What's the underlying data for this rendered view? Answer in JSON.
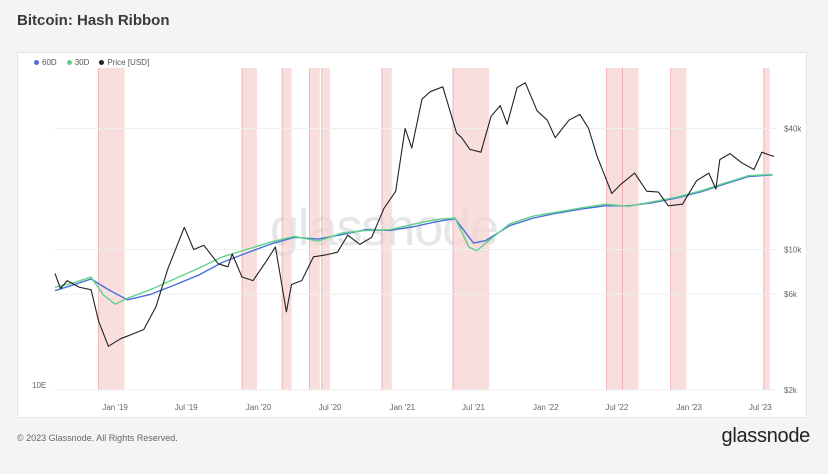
{
  "page": {
    "title": "Bitcoin: Hash Ribbon",
    "footer": "© 2023 Glassnode. All Rights Reserved.",
    "brand": "glassnode",
    "watermark": "glassnode"
  },
  "colors": {
    "price": "#222222",
    "sma60": "#4a6fdc",
    "sma30": "#5fd38a",
    "capitulation": "#f7d3d3",
    "capitulation_edge": "#e88686"
  },
  "chart_data": {
    "type": "line",
    "title": "Bitcoin: Hash Ribbon",
    "legend_position": "top-left",
    "grid": true,
    "x_ticks": [
      "Jan '19",
      "Jul '19",
      "Jan '20",
      "Jul '20",
      "Jan '21",
      "Jul '21",
      "Jan '22",
      "Jul '22",
      "Jan '23",
      "Jul '23"
    ],
    "x_tick_dates": [
      "2019-01-01",
      "2019-07-01",
      "2020-01-01",
      "2020-07-01",
      "2021-01-01",
      "2021-07-01",
      "2022-01-01",
      "2022-07-01",
      "2023-01-01",
      "2023-07-01"
    ],
    "xlim": [
      "2018-08-01",
      "2023-08-10"
    ],
    "y_right": {
      "scale": "log",
      "ticks": [
        "$2k",
        "$6k",
        "$10k",
        "$40k"
      ],
      "tick_values": [
        2000,
        6000,
        10000,
        40000
      ],
      "ylim": [
        2000,
        80000
      ]
    },
    "y_left": {
      "scale": "log",
      "ticks": [
        "10E"
      ]
    },
    "series": [
      {
        "name": "60D",
        "unit": "EH/s",
        "x": [
          "2018-08-01",
          "2018-09-15",
          "2018-11-01",
          "2018-12-15",
          "2019-02-01",
          "2019-04-01",
          "2019-06-01",
          "2019-08-01",
          "2019-10-01",
          "2019-12-01",
          "2020-02-01",
          "2020-04-01",
          "2020-06-01",
          "2020-08-01",
          "2020-10-01",
          "2020-12-01",
          "2021-02-01",
          "2021-04-01",
          "2021-05-15",
          "2021-07-01",
          "2021-08-01",
          "2021-10-01",
          "2021-12-01",
          "2022-02-01",
          "2022-04-01",
          "2022-06-01",
          "2022-08-01",
          "2022-10-01",
          "2022-12-01",
          "2023-02-01",
          "2023-04-01",
          "2023-06-01",
          "2023-08-01"
        ],
        "values": [
          47,
          52,
          58,
          48,
          40,
          44,
          52,
          62,
          78,
          92,
          108,
          122,
          118,
          128,
          140,
          138,
          148,
          162,
          170,
          110,
          115,
          150,
          172,
          188,
          202,
          214,
          214,
          226,
          246,
          275,
          315,
          360,
          372
        ]
      },
      {
        "name": "30D",
        "unit": "EH/s",
        "x": [
          "2018-08-01",
          "2018-09-15",
          "2018-11-01",
          "2018-12-01",
          "2019-01-01",
          "2019-02-01",
          "2019-04-01",
          "2019-06-01",
          "2019-08-01",
          "2019-10-01",
          "2019-12-01",
          "2020-02-01",
          "2020-04-01",
          "2020-06-01",
          "2020-08-01",
          "2020-10-01",
          "2020-12-01",
          "2021-02-01",
          "2021-04-01",
          "2021-05-15",
          "2021-06-20",
          "2021-07-10",
          "2021-08-01",
          "2021-10-01",
          "2021-12-01",
          "2022-02-01",
          "2022-04-01",
          "2022-06-01",
          "2022-08-01",
          "2022-10-01",
          "2022-12-01",
          "2023-02-01",
          "2023-04-01",
          "2023-06-01",
          "2023-08-01"
        ],
        "values": [
          50,
          54,
          60,
          44,
          37,
          41,
          48,
          58,
          70,
          86,
          98,
          112,
          124,
          114,
          132,
          138,
          140,
          155,
          168,
          172,
          102,
          96,
          110,
          155,
          178,
          192,
          206,
          220,
          212,
          230,
          250,
          280,
          320,
          366,
          375
        ]
      },
      {
        "name": "Price [USD]",
        "unit": "USD",
        "x": [
          "2018-08-01",
          "2018-08-15",
          "2018-09-01",
          "2018-10-01",
          "2018-11-01",
          "2018-11-20",
          "2018-12-15",
          "2019-01-15",
          "2019-02-15",
          "2019-03-15",
          "2019-04-15",
          "2019-05-15",
          "2019-06-26",
          "2019-07-20",
          "2019-08-15",
          "2019-09-20",
          "2019-10-15",
          "2019-10-26",
          "2019-11-20",
          "2019-12-18",
          "2020-01-20",
          "2020-02-13",
          "2020-03-12",
          "2020-03-25",
          "2020-04-20",
          "2020-05-20",
          "2020-06-20",
          "2020-07-20",
          "2020-08-15",
          "2020-09-15",
          "2020-10-15",
          "2020-11-15",
          "2020-12-15",
          "2021-01-08",
          "2021-01-25",
          "2021-02-20",
          "2021-03-13",
          "2021-04-14",
          "2021-05-19",
          "2021-06-01",
          "2021-06-22",
          "2021-07-20",
          "2021-08-15",
          "2021-09-07",
          "2021-09-25",
          "2021-10-20",
          "2021-11-10",
          "2021-12-10",
          "2022-01-05",
          "2022-01-25",
          "2022-03-01",
          "2022-03-29",
          "2022-04-20",
          "2022-05-12",
          "2022-06-18",
          "2022-07-10",
          "2022-08-15",
          "2022-09-15",
          "2022-10-15",
          "2022-11-09",
          "2022-12-15",
          "2023-01-20",
          "2023-02-20",
          "2023-03-10",
          "2023-03-20",
          "2023-04-15",
          "2023-05-15",
          "2023-06-15",
          "2023-07-05",
          "2023-07-25",
          "2023-08-05"
        ],
        "values": [
          7600,
          6400,
          7000,
          6500,
          6300,
          4400,
          3300,
          3600,
          3800,
          4000,
          5200,
          8000,
          12900,
          10000,
          10500,
          8500,
          8200,
          9500,
          7300,
          7000,
          8700,
          10300,
          4900,
          6700,
          7000,
          9200,
          9400,
          9700,
          11800,
          10600,
          11500,
          16000,
          19500,
          40000,
          32000,
          56000,
          61000,
          64500,
          38000,
          36000,
          31500,
          30500,
          46000,
          52000,
          42000,
          64000,
          67500,
          49000,
          44000,
          36000,
          44000,
          47000,
          40000,
          29000,
          19000,
          21000,
          24000,
          19500,
          19300,
          16500,
          16800,
          22000,
          24000,
          20000,
          28000,
          30000,
          27000,
          25000,
          30500,
          29500,
          29100
        ]
      }
    ],
    "capitulation_periods": [
      [
        "2018-11-20",
        "2019-01-25"
      ],
      [
        "2019-11-20",
        "2019-12-28"
      ],
      [
        "2020-03-01",
        "2020-03-25"
      ],
      [
        "2020-05-10",
        "2020-06-05"
      ],
      [
        "2020-06-10",
        "2020-07-01"
      ],
      [
        "2020-11-10",
        "2020-12-05"
      ],
      [
        "2021-05-10",
        "2021-08-10"
      ],
      [
        "2022-06-05",
        "2022-07-15"
      ],
      [
        "2022-07-15",
        "2022-08-25"
      ],
      [
        "2022-11-15",
        "2022-12-25"
      ],
      [
        "2023-07-10",
        "2023-07-25"
      ]
    ]
  }
}
